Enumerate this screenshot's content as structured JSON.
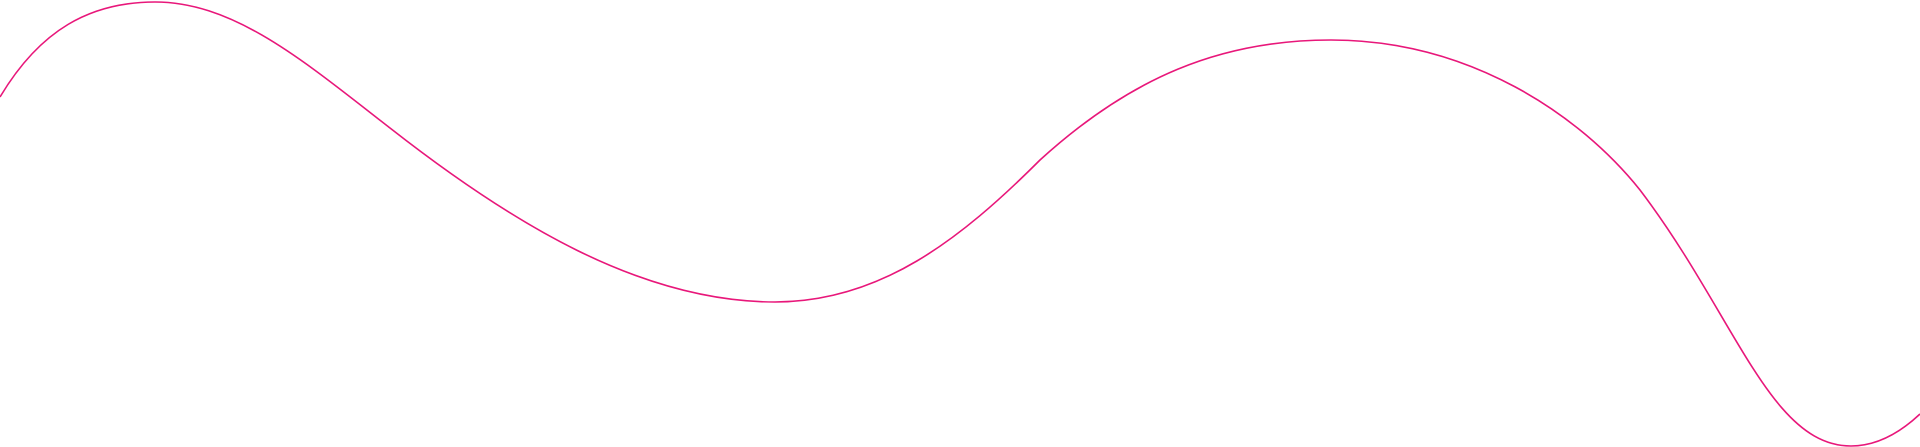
{
  "decoration": {
    "type": "wavy-line",
    "stroke_color": "#e8177a",
    "background_color": "#ffffff"
  }
}
